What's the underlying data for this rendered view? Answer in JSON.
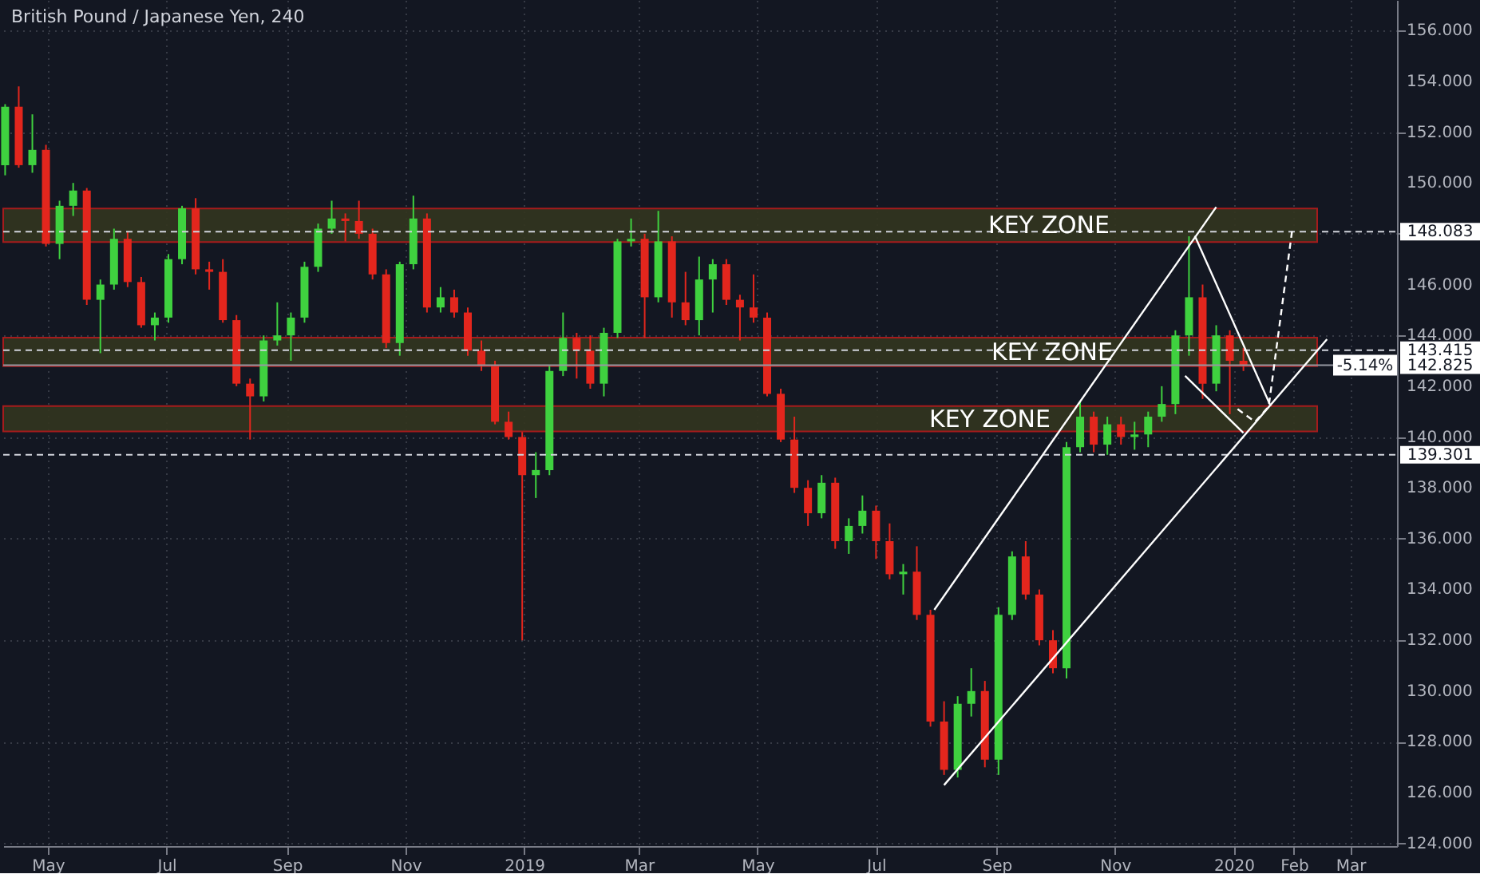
{
  "chart_data": {
    "type": "candlestick",
    "title": "British Pound / Japanese Yen, 240",
    "x": [
      "2018-04-09",
      "2018-04-16",
      "2018-04-23",
      "2018-04-30",
      "2018-05-07",
      "2018-05-14",
      "2018-05-21",
      "2018-05-28",
      "2018-06-04",
      "2018-06-11",
      "2018-06-18",
      "2018-06-25",
      "2018-07-02",
      "2018-07-09",
      "2018-07-16",
      "2018-07-23",
      "2018-07-30",
      "2018-08-06",
      "2018-08-13",
      "2018-08-20",
      "2018-08-27",
      "2018-09-03",
      "2018-09-10",
      "2018-09-17",
      "2018-09-24",
      "2018-10-01",
      "2018-10-08",
      "2018-10-15",
      "2018-10-22",
      "2018-10-29",
      "2018-11-05",
      "2018-11-12",
      "2018-11-19",
      "2018-11-26",
      "2018-12-03",
      "2018-12-10",
      "2018-12-17",
      "2018-12-24",
      "2018-12-31",
      "2019-01-07",
      "2019-01-14",
      "2019-01-21",
      "2019-01-28",
      "2019-02-04",
      "2019-02-11",
      "2019-02-18",
      "2019-02-25",
      "2019-03-04",
      "2019-03-11",
      "2019-03-18",
      "2019-03-25",
      "2019-04-01",
      "2019-04-08",
      "2019-04-15",
      "2019-04-22",
      "2019-04-29",
      "2019-05-06",
      "2019-05-13",
      "2019-05-20",
      "2019-05-27",
      "2019-06-03",
      "2019-06-10",
      "2019-06-17",
      "2019-06-24",
      "2019-07-01",
      "2019-07-08",
      "2019-07-15",
      "2019-07-22",
      "2019-07-29",
      "2019-08-05",
      "2019-08-12",
      "2019-08-19",
      "2019-08-26",
      "2019-09-02",
      "2019-09-09",
      "2019-09-16",
      "2019-09-23",
      "2019-09-30",
      "2019-10-07",
      "2019-10-14",
      "2019-10-21",
      "2019-10-28",
      "2019-11-04",
      "2019-11-11",
      "2019-11-18",
      "2019-11-25",
      "2019-12-02",
      "2019-12-09",
      "2019-12-16",
      "2019-12-23",
      "2019-12-30",
      "2020-01-06"
    ],
    "ohlc": [
      [
        150.7,
        153.1,
        150.3,
        153.0
      ],
      [
        153.0,
        153.8,
        150.6,
        150.7
      ],
      [
        150.7,
        152.7,
        150.4,
        151.3
      ],
      [
        151.3,
        151.5,
        147.5,
        147.6
      ],
      [
        147.6,
        149.3,
        147.0,
        149.1
      ],
      [
        149.1,
        150.0,
        148.7,
        149.7
      ],
      [
        149.7,
        149.8,
        145.2,
        145.4
      ],
      [
        145.4,
        146.2,
        143.3,
        146.0
      ],
      [
        146.0,
        148.2,
        145.8,
        147.8
      ],
      [
        147.8,
        148.1,
        145.9,
        146.1
      ],
      [
        146.1,
        146.3,
        144.3,
        144.4
      ],
      [
        144.4,
        144.9,
        143.8,
        144.7
      ],
      [
        144.7,
        147.2,
        144.5,
        147.0
      ],
      [
        147.0,
        149.1,
        146.8,
        149.0
      ],
      [
        149.0,
        149.4,
        146.4,
        146.6
      ],
      [
        146.6,
        146.9,
        145.8,
        146.5
      ],
      [
        146.5,
        147.0,
        144.5,
        144.6
      ],
      [
        144.6,
        144.8,
        142.0,
        142.1
      ],
      [
        142.1,
        142.3,
        139.9,
        141.6
      ],
      [
        141.6,
        144.0,
        141.4,
        143.8
      ],
      [
        143.8,
        145.3,
        143.6,
        144.0
      ],
      [
        144.0,
        144.9,
        143.0,
        144.7
      ],
      [
        144.7,
        146.9,
        144.5,
        146.7
      ],
      [
        146.7,
        148.4,
        146.5,
        148.2
      ],
      [
        148.2,
        149.3,
        148.0,
        148.6
      ],
      [
        148.6,
        148.8,
        147.7,
        148.5
      ],
      [
        148.5,
        149.3,
        147.8,
        148.0
      ],
      [
        148.0,
        148.2,
        146.2,
        146.4
      ],
      [
        146.4,
        146.6,
        143.5,
        143.7
      ],
      [
        143.7,
        146.9,
        143.2,
        146.8
      ],
      [
        146.8,
        149.5,
        146.6,
        148.6
      ],
      [
        148.6,
        148.8,
        144.9,
        145.1
      ],
      [
        145.1,
        145.9,
        144.9,
        145.5
      ],
      [
        145.5,
        145.8,
        144.7,
        144.9
      ],
      [
        144.9,
        145.1,
        143.2,
        143.4
      ],
      [
        143.4,
        143.8,
        142.6,
        142.8
      ],
      [
        142.8,
        143.0,
        140.5,
        140.6
      ],
      [
        140.6,
        141.0,
        139.9,
        140.0
      ],
      [
        140.0,
        140.2,
        132.0,
        138.5
      ],
      [
        138.5,
        139.4,
        137.6,
        138.7
      ],
      [
        138.7,
        142.8,
        138.5,
        142.6
      ],
      [
        142.6,
        144.9,
        142.4,
        143.9
      ],
      [
        143.9,
        144.1,
        142.3,
        143.4
      ],
      [
        143.4,
        144.0,
        141.9,
        142.1
      ],
      [
        142.1,
        144.3,
        141.6,
        144.1
      ],
      [
        144.1,
        147.8,
        143.9,
        147.7
      ],
      [
        147.7,
        148.6,
        147.5,
        147.8
      ],
      [
        147.8,
        148.0,
        143.9,
        145.5
      ],
      [
        145.5,
        148.9,
        145.3,
        147.7
      ],
      [
        147.7,
        147.9,
        144.7,
        145.3
      ],
      [
        145.3,
        146.5,
        144.4,
        144.6
      ],
      [
        144.6,
        147.1,
        144.0,
        146.2
      ],
      [
        146.2,
        147.0,
        144.9,
        146.8
      ],
      [
        146.8,
        147.0,
        145.2,
        145.4
      ],
      [
        145.4,
        145.6,
        143.8,
        145.1
      ],
      [
        145.1,
        146.4,
        144.5,
        144.7
      ],
      [
        144.7,
        144.9,
        141.6,
        141.7
      ],
      [
        141.7,
        141.9,
        139.8,
        139.9
      ],
      [
        139.9,
        140.8,
        137.8,
        138.0
      ],
      [
        138.0,
        138.3,
        136.5,
        137.0
      ],
      [
        137.0,
        138.5,
        136.8,
        138.2
      ],
      [
        138.2,
        138.4,
        135.6,
        135.9
      ],
      [
        135.9,
        136.8,
        135.4,
        136.5
      ],
      [
        136.5,
        137.7,
        136.2,
        137.1
      ],
      [
        137.1,
        137.3,
        135.2,
        135.9
      ],
      [
        135.9,
        136.6,
        134.4,
        134.6
      ],
      [
        134.6,
        135.0,
        133.8,
        134.7
      ],
      [
        134.7,
        135.7,
        132.8,
        133.0
      ],
      [
        133.0,
        133.2,
        128.6,
        128.8
      ],
      [
        128.8,
        129.6,
        126.7,
        126.9
      ],
      [
        126.9,
        129.8,
        126.6,
        129.5
      ],
      [
        129.5,
        130.9,
        129.0,
        130.0
      ],
      [
        130.0,
        130.4,
        127.0,
        127.3
      ],
      [
        127.3,
        133.3,
        126.7,
        133.0
      ],
      [
        133.0,
        135.5,
        132.8,
        135.3
      ],
      [
        135.3,
        135.9,
        133.6,
        133.8
      ],
      [
        133.8,
        134.0,
        131.8,
        132.0
      ],
      [
        132.0,
        132.4,
        130.7,
        130.9
      ],
      [
        130.9,
        139.8,
        130.5,
        139.6
      ],
      [
        139.6,
        141.4,
        139.4,
        140.8
      ],
      [
        140.8,
        141.0,
        139.4,
        139.7
      ],
      [
        139.7,
        140.8,
        139.3,
        140.5
      ],
      [
        140.5,
        140.8,
        139.7,
        140.0
      ],
      [
        140.0,
        140.6,
        139.5,
        140.1
      ],
      [
        140.1,
        141.0,
        139.6,
        140.8
      ],
      [
        140.8,
        142.0,
        140.6,
        141.3
      ],
      [
        141.3,
        144.2,
        140.9,
        144.0
      ],
      [
        144.0,
        147.9,
        143.2,
        145.5
      ],
      [
        145.5,
        146.0,
        141.5,
        142.1
      ],
      [
        142.1,
        144.4,
        141.8,
        144.0
      ],
      [
        144.0,
        144.2,
        140.9,
        143.0
      ],
      [
        143.0,
        143.5,
        142.6,
        142.825
      ]
    ],
    "colors": [
      "#3fd13f",
      "#e3261d",
      "#3fd13f",
      "#e3261d",
      "#3fd13f",
      "#3fd13f",
      "#e3261d",
      "#3fd13f",
      "#3fd13f",
      "#e3261d",
      "#e3261d",
      "#3fd13f",
      "#3fd13f",
      "#3fd13f",
      "#e3261d",
      "#e3261d",
      "#e3261d",
      "#e3261d",
      "#e3261d",
      "#3fd13f",
      "#3fd13f",
      "#3fd13f",
      "#3fd13f",
      "#3fd13f",
      "#3fd13f",
      "#e3261d",
      "#e3261d",
      "#e3261d",
      "#e3261d",
      "#3fd13f",
      "#3fd13f",
      "#e3261d",
      "#3fd13f",
      "#e3261d",
      "#e3261d",
      "#e3261d",
      "#e3261d",
      "#e3261d",
      "#e3261d",
      "#3fd13f",
      "#3fd13f",
      "#3fd13f",
      "#e3261d",
      "#e3261d",
      "#3fd13f",
      "#3fd13f",
      "#3fd13f",
      "#e3261d",
      "#3fd13f",
      "#e3261d",
      "#e3261d",
      "#3fd13f",
      "#3fd13f",
      "#e3261d",
      "#e3261d",
      "#e3261d",
      "#e3261d",
      "#e3261d",
      "#e3261d",
      "#e3261d",
      "#3fd13f",
      "#e3261d",
      "#3fd13f",
      "#3fd13f",
      "#e3261d",
      "#e3261d",
      "#3fd13f",
      "#e3261d",
      "#e3261d",
      "#e3261d",
      "#3fd13f",
      "#3fd13f",
      "#e3261d",
      "#3fd13f",
      "#3fd13f",
      "#e3261d",
      "#e3261d",
      "#e3261d",
      "#3fd13f",
      "#3fd13f",
      "#e3261d",
      "#3fd13f",
      "#e3261d",
      "#3fd13f",
      "#3fd13f",
      "#3fd13f",
      "#3fd13f",
      "#3fd13f",
      "#e3261d",
      "#3fd13f",
      "#e3261d",
      "#e3261d"
    ],
    "series": [
      {
        "type": "line",
        "color": "#ffffff",
        "x": [
          "2019-08-05",
          "2020-02-18"
        ],
        "values": [
          126.3,
          143.85
        ]
      },
      {
        "type": "line",
        "color": "#ffffff",
        "x": [
          "2019-07-31",
          "2019-12-23"
        ],
        "values": [
          133.2,
          149.05
        ]
      },
      {
        "type": "line",
        "color": "#ffffff",
        "x": [
          "2019-12-12",
          "2020-01-20"
        ],
        "values": [
          147.92,
          141.22
        ]
      },
      {
        "type": "line",
        "color": "#ffffff",
        "x": [
          "2019-12-07",
          "2020-01-06"
        ],
        "values": [
          142.41,
          140.16
        ]
      },
      {
        "type": "line",
        "color": "#ffffff",
        "line_style": "dashed",
        "x": [
          "2020-01-03",
          "2020-01-12",
          "2020-01-19",
          "2020-01-31"
        ],
        "values": [
          141.1,
          140.6,
          141.2,
          148.1
        ]
      }
    ],
    "bands": [
      {
        "axis": "y",
        "from": 147.67,
        "to": 148.99,
        "label": "KEY ZONE",
        "color": "#33351f"
      },
      {
        "axis": "y",
        "from": 142.79,
        "to": 143.91,
        "label": "KEY ZONE",
        "color": "#33351f"
      },
      {
        "axis": "y",
        "from": 140.22,
        "to": 141.22,
        "label": "KEY ZONE",
        "color": "#33351f"
      }
    ],
    "ref_lines": [
      {
        "axis": "y",
        "value": 148.083,
        "label": "148.083",
        "line_style": "dashed",
        "color": "#d1d4dc"
      },
      {
        "axis": "y",
        "value": 143.415,
        "label": "143.415",
        "line_style": "dashed",
        "color": "#d1d4dc"
      },
      {
        "axis": "y",
        "value": 139.301,
        "label": "139.301",
        "line_style": "dashed",
        "color": "#d1d4dc"
      },
      {
        "axis": "y",
        "value": 142.825,
        "label": "142.825",
        "line_style": "solid",
        "color": "#9598a1"
      }
    ],
    "annotations": [
      {
        "text": "-5.14%",
        "y": 142.825
      }
    ],
    "xlim": [
      "2018-04-08",
      "2020-03-25"
    ],
    "xticks": [
      {
        "value": "2018-05",
        "label": "May"
      },
      {
        "value": "2018-07",
        "label": "Jul"
      },
      {
        "value": "2018-09",
        "label": "Sep"
      },
      {
        "value": "2018-11",
        "label": "Nov"
      },
      {
        "value": "2019-01",
        "label": "2019"
      },
      {
        "value": "2019-03",
        "label": "Mar"
      },
      {
        "value": "2019-05",
        "label": "May"
      },
      {
        "value": "2019-07",
        "label": "Jul"
      },
      {
        "value": "2019-09",
        "label": "Sep"
      },
      {
        "value": "2019-11",
        "label": "Nov"
      },
      {
        "value": "2020-01",
        "label": "2020"
      },
      {
        "value": "2020-02",
        "label": "Feb"
      },
      {
        "value": "2020-03",
        "label": "Mar"
      }
    ],
    "ylim": [
      123.9,
      157.2
    ],
    "yticks": [
      {
        "value": 124,
        "label": "124.000"
      },
      {
        "value": 126,
        "label": "126.000"
      },
      {
        "value": 128,
        "label": "128.000"
      },
      {
        "value": 130,
        "label": "130.000"
      },
      {
        "value": 132,
        "label": "132.000"
      },
      {
        "value": 134,
        "label": "134.000"
      },
      {
        "value": 136,
        "label": "136.000"
      },
      {
        "value": 138,
        "label": "138.000"
      },
      {
        "value": 140,
        "label": "140.000"
      },
      {
        "value": 142,
        "label": "142.000"
      },
      {
        "value": 144,
        "label": "144.000"
      },
      {
        "value": 146,
        "label": "146.000"
      },
      {
        "value": 148,
        "label": null
      },
      {
        "value": 150,
        "label": "150.000"
      },
      {
        "value": 152,
        "label": "152.000"
      },
      {
        "value": 154,
        "label": "154.000"
      },
      {
        "value": 156,
        "label": "156.000"
      }
    ],
    "grid": true
  }
}
